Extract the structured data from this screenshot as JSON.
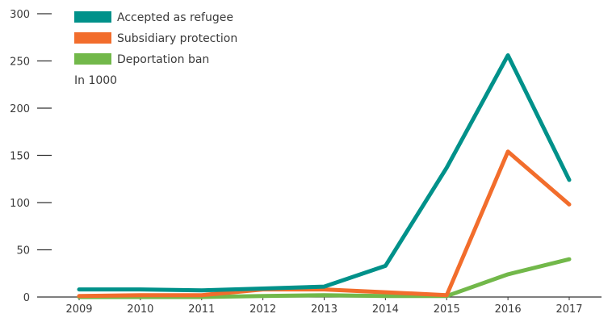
{
  "chart_data": {
    "type": "line",
    "unit_note": "In 1000",
    "x": [
      "2009",
      "2010",
      "2011",
      "2012",
      "2013",
      "2014",
      "2015",
      "2016",
      "2017"
    ],
    "y_ticks": [
      0,
      50,
      100,
      150,
      200,
      250,
      300
    ],
    "ylim": [
      0,
      300
    ],
    "grid": false,
    "legend_position": "top-left",
    "series": [
      {
        "name": "Accepted as refugee",
        "color": "#00918a",
        "values": [
          8,
          8,
          7,
          9,
          11,
          33,
          137,
          256,
          124
        ]
      },
      {
        "name": "Subsidiary protection",
        "color": "#f26d2c",
        "values": [
          1,
          2,
          2,
          8,
          8,
          5,
          2,
          154,
          98
        ]
      },
      {
        "name": "Deportation ban",
        "color": "#72b84a",
        "values": [
          0,
          0,
          0,
          1,
          2,
          1,
          1,
          24,
          40
        ]
      }
    ]
  }
}
